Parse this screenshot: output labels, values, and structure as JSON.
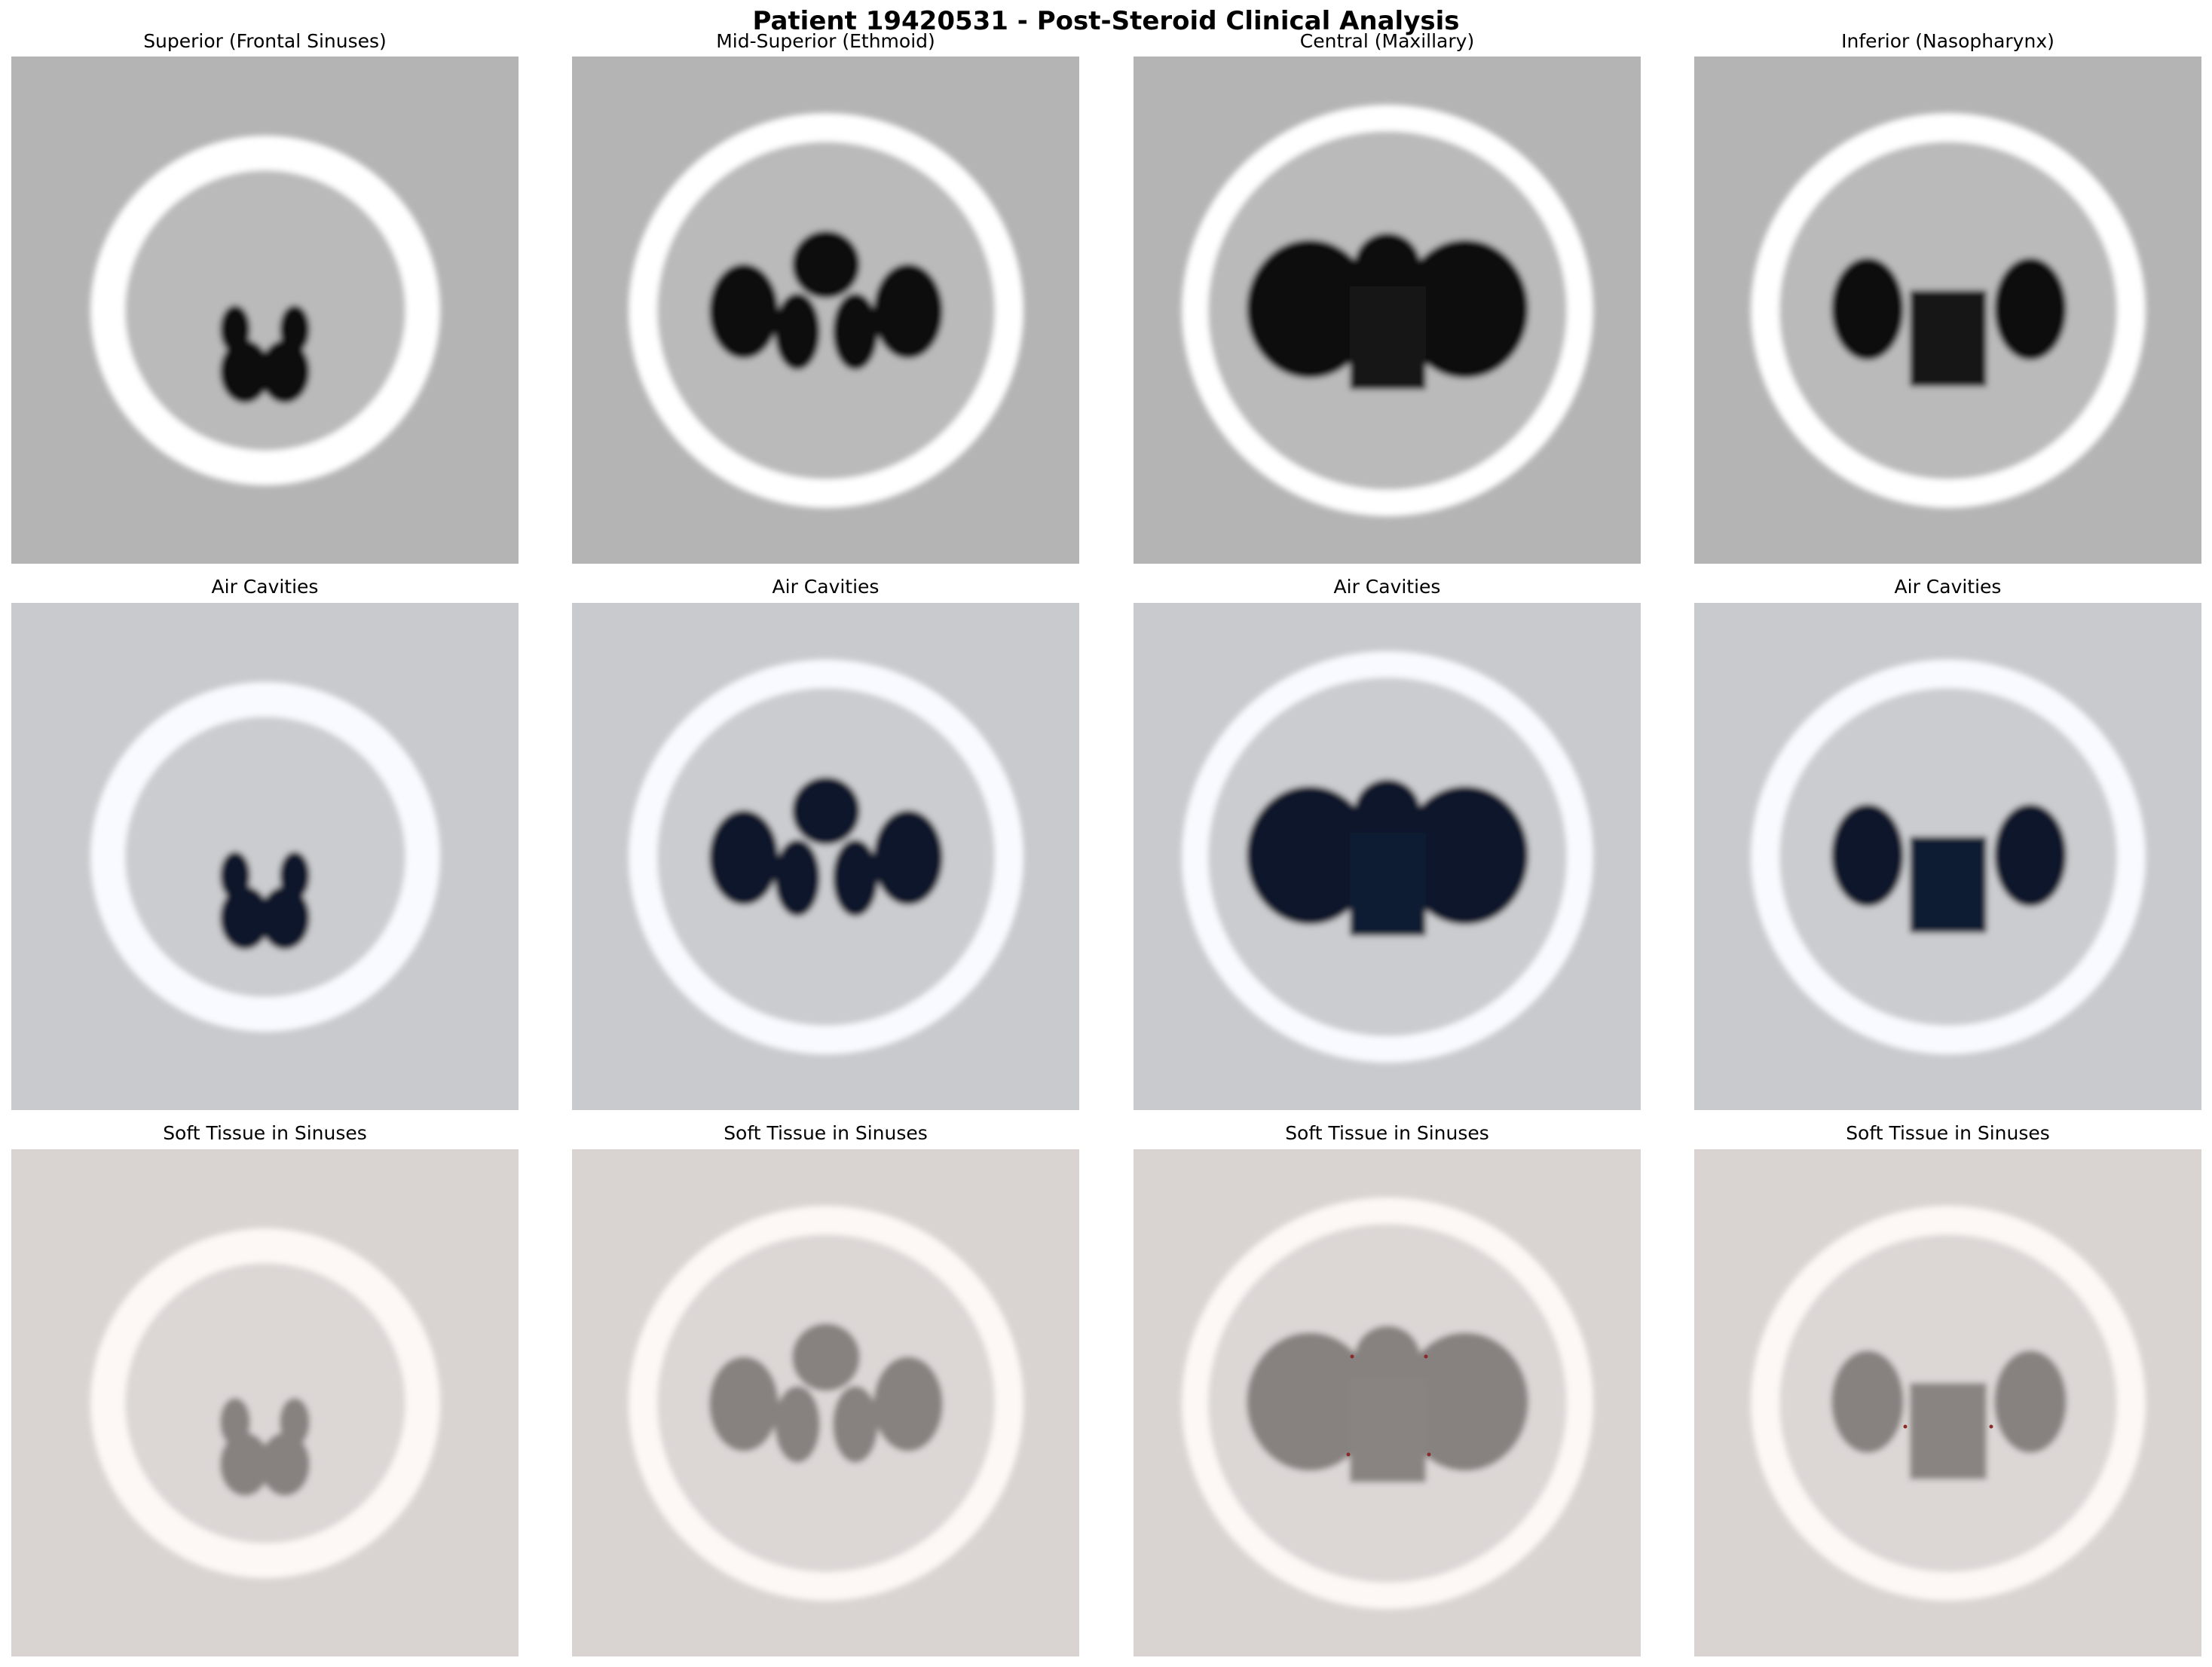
{
  "figure": {
    "title": "Patient 19420531 - Post-Steroid Clinical Analysis"
  },
  "rows": [
    {
      "key": "ct",
      "panels": [
        {
          "title": "Superior (Frontal Sinuses)",
          "level": "superior"
        },
        {
          "title": "Mid-Superior (Ethmoid)",
          "level": "mid-superior"
        },
        {
          "title": "Central (Maxillary)",
          "level": "central"
        },
        {
          "title": "Inferior (Nasopharynx)",
          "level": "inferior"
        }
      ]
    },
    {
      "key": "air",
      "panels": [
        {
          "title": "Air Cavities",
          "level": "superior"
        },
        {
          "title": "Air Cavities",
          "level": "mid-superior"
        },
        {
          "title": "Air Cavities",
          "level": "central"
        },
        {
          "title": "Air Cavities",
          "level": "inferior"
        }
      ]
    },
    {
      "key": "tissue",
      "panels": [
        {
          "title": "Soft Tissue in Sinuses",
          "level": "superior"
        },
        {
          "title": "Soft Tissue in Sinuses",
          "level": "mid-superior"
        },
        {
          "title": "Soft Tissue in Sinuses",
          "level": "central"
        },
        {
          "title": "Soft Tissue in Sinuses",
          "level": "inferior"
        }
      ]
    }
  ],
  "palettes": {
    "ct": {
      "background": "#b4b4b4",
      "head": "#bababa",
      "ring": "#ffffff",
      "cavity": "#0a0a0a",
      "pharynx": "#161616"
    },
    "air": {
      "background": "#c8cacd",
      "head": "#cbcccf",
      "ring": "#f8faff",
      "cavity": "#08142a",
      "pharynx": "#0f1a30"
    },
    "tissue": {
      "background": "#d9d4d2",
      "head": "#dcd7d5",
      "ring": "#fdf8f5",
      "cavity": "#878280",
      "pharynx": "#898482",
      "speck": "#8b2a2a"
    }
  }
}
